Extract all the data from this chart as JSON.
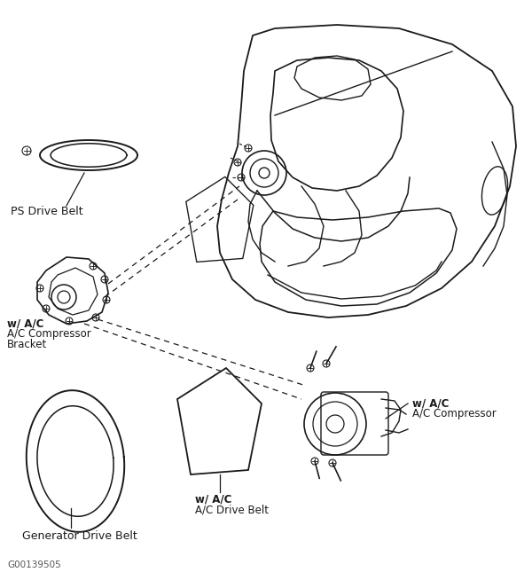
{
  "background_color": "#ffffff",
  "line_color": "#1a1a1a",
  "text_color": "#1a1a1a",
  "labels": {
    "ps_drive_belt": "PS Drive Belt",
    "wac_bracket_line1": "w/ A/C",
    "wac_bracket_line2": "A/C Compressor",
    "wac_bracket_line3": "Bracket",
    "wac_compressor_line1": "w/ A/C",
    "wac_compressor_line2": "A/C Compressor",
    "wac_drive_belt_line1": "w/ A/C",
    "wac_drive_belt_line2": "A/C Drive Belt",
    "generator_belt": "Generator Drive Belt",
    "part_number": "G00139505"
  },
  "fig_width": 6.0,
  "fig_height": 6.54,
  "dpi": 100
}
